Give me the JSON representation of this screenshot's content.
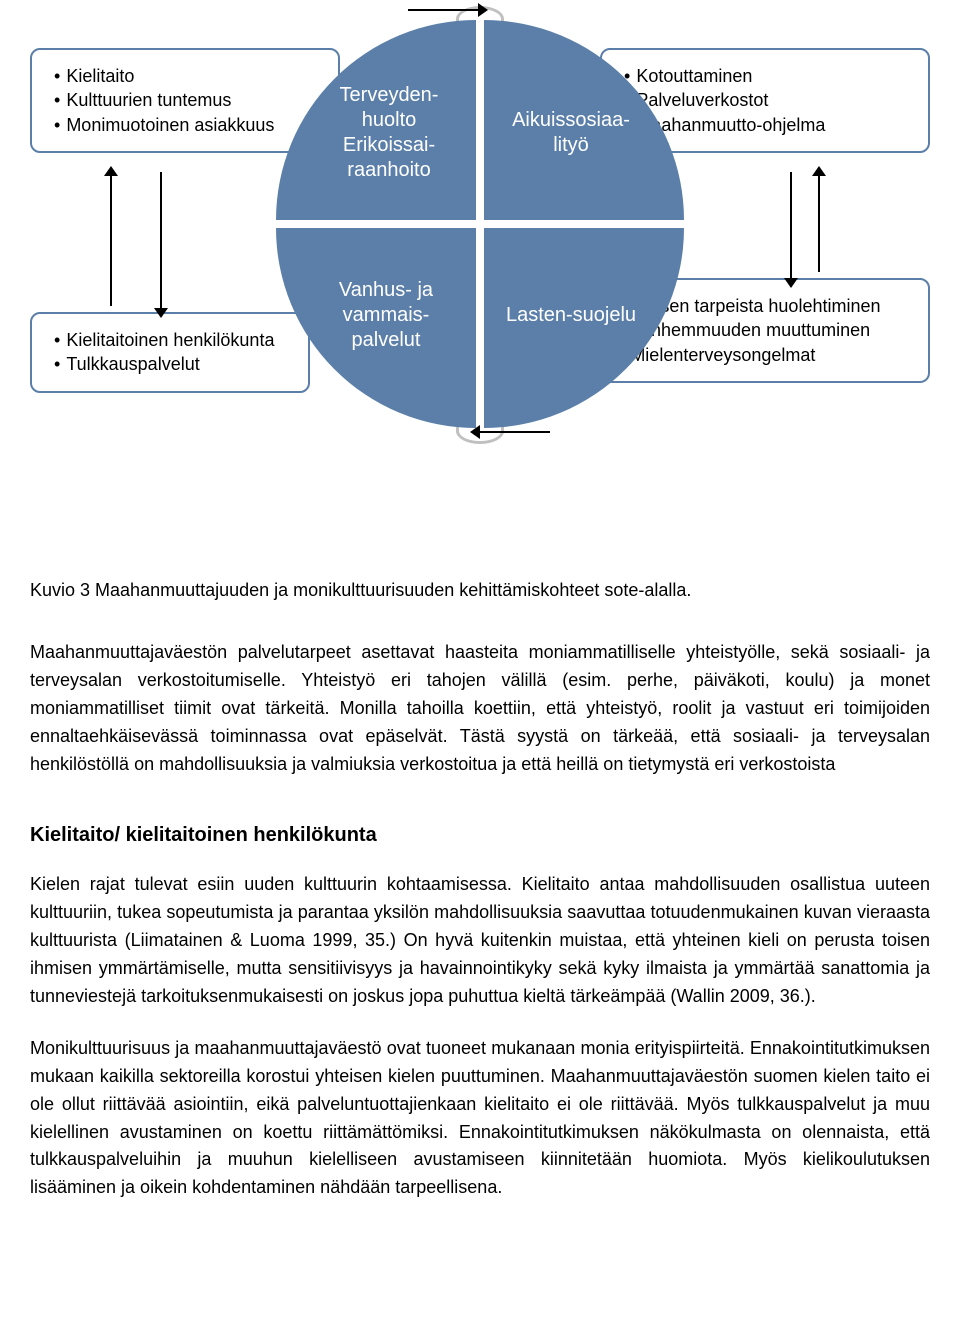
{
  "diagram": {
    "box_border_color": "#5b7fa9",
    "circle_fill": "#5b7fa9",
    "circle_text_color": "#ffffff",
    "arc_color": "#c0c0c0",
    "arrow_color": "#000000",
    "box_tl": {
      "l1": "Kielitaito",
      "l2": "Kulttuurien tuntemus",
      "l3": "Monimuotoinen asiakkuus"
    },
    "box_tr": {
      "l1": "Kotouttaminen",
      "l2": "Palveluverkostot",
      "l3": "Maahanmuutto-ohjelma"
    },
    "box_bl": {
      "l1": "Kielitaitoinen henkilökunta",
      "l2": "Tulkkauspalvelut"
    },
    "box_br": {
      "l1": "Lapsen tarpeista huolehtiminen",
      "l2": "Vanhemmuuden muuttuminen",
      "l3": "Mielenterveysongelmat"
    },
    "q_tl": {
      "l1": "Terveyden-huolto",
      "l2": "Erikoissai-raanhoito"
    },
    "q_tr": {
      "l1": "Aikuissosiaa-lityö"
    },
    "q_bl": {
      "l1": "Vanhus- ja vammais-palvelut"
    },
    "q_br": {
      "l1": "Lasten-suojelu"
    }
  },
  "caption": "Kuvio 3 Maahanmuuttajuuden ja monikulttuurisuuden kehittämiskohteet sote-alalla.",
  "paragraph1": "Maahanmuuttajaväestön palvelutarpeet asettavat haasteita moniammatilliselle yhteistyölle, sekä sosiaali- ja terveysalan verkostoitumiselle. Yhteistyö eri tahojen välillä (esim. perhe, päiväkoti, koulu) ja monet moniammatilliset tiimit ovat tärkeitä. Monilla tahoilla koettiin, että yhteistyö, roolit ja vastuut eri toimijoiden ennaltaehkäisevässä toiminnassa ovat epäselvät.  Tästä syystä on tärkeää, että sosiaali- ja terveysalan henkilöstöllä on mahdollisuuksia ja valmiuksia verkostoitua ja että heillä on tietymystä eri verkostoista",
  "section_heading": "Kielitaito/ kielitaitoinen henkilökunta",
  "paragraph2": "Kielen rajat tulevat esiin uuden kulttuurin kohtaamisessa. Kielitaito antaa mahdollisuuden osallistua uuteen kulttuuriin, tukea sopeutumista ja parantaa yksilön mahdollisuuksia saavuttaa totuudenmukainen kuvan vieraasta kulttuurista (Liimatainen & Luoma 1999, 35.) On hyvä kuitenkin muistaa, että yhteinen kieli on perusta toisen ihmisen ymmärtämiselle, mutta sensitiivisyys ja havainnointikyky sekä kyky ilmaista ja ymmärtää sanattomia ja tunneviestejä tarkoituksenmukaisesti on joskus jopa puhuttua kieltä tärkeämpää (Wallin 2009, 36.).",
  "paragraph3": "Monikulttuurisuus ja maahanmuuttajaväestö ovat tuoneet mukanaan monia erityispiirteitä. Ennakointitutkimuksen mukaan kaikilla sektoreilla korostui yhteisen kielen puuttuminen. Maahanmuuttajaväestön suomen kielen taito ei ole ollut riittävää asiointiin, eikä palveluntuottajienkaan kielitaito ei ole riittävää. Myös tulkkauspalvelut ja muu kielellinen avustaminen on koettu riittämättömiksi. Ennakointitutkimuksen näkökulmasta on olennaista, että tulkkauspalveluihin ja muuhun kielelliseen avustamiseen kiinnitetään huomiota. Myös kielikoulutuksen lisääminen ja oikein kohdentaminen nähdään tarpeellisena."
}
